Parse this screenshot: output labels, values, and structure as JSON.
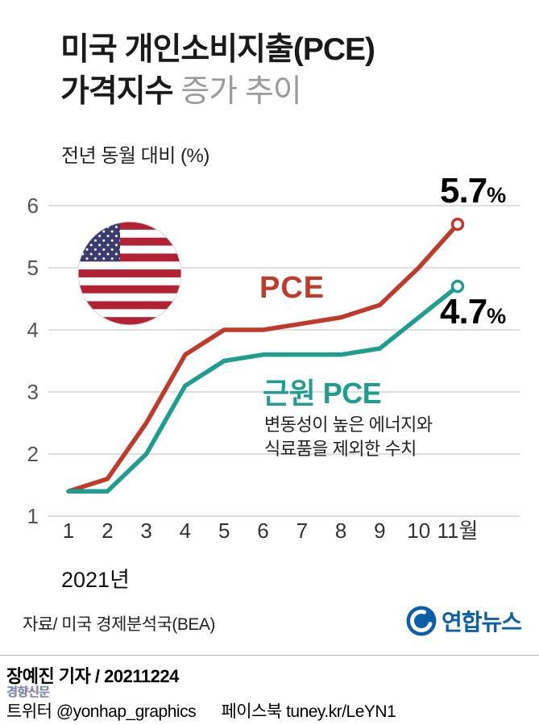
{
  "header": {
    "title_line1": "미국 개인소비지출(PCE)",
    "title_line2_strong": "가격지수",
    "title_line2_light": " 증가 추이",
    "subtitle": "전년 동월 대비 (%)"
  },
  "chart_data": {
    "type": "line",
    "x": [
      1,
      2,
      3,
      4,
      5,
      6,
      7,
      8,
      9,
      10,
      11
    ],
    "x_tick_labels": [
      "1",
      "2",
      "3",
      "4",
      "5",
      "6",
      "7",
      "8",
      "9",
      "10",
      "11월"
    ],
    "y_ticks": [
      1,
      2,
      3,
      4,
      5,
      6
    ],
    "ylim": [
      1,
      6
    ],
    "grid": true,
    "year_label": "2021년",
    "series": [
      {
        "name": "PCE",
        "color": "#c03a2b",
        "values": [
          1.4,
          1.6,
          2.5,
          3.6,
          4.0,
          4.0,
          4.1,
          4.2,
          4.4,
          5.0,
          5.7
        ],
        "end_label_value": "5.7",
        "end_label_unit": "%"
      },
      {
        "name": "근원 PCE",
        "color": "#1d9e8f",
        "values": [
          1.4,
          1.4,
          2.0,
          3.1,
          3.5,
          3.6,
          3.6,
          3.6,
          3.7,
          4.2,
          4.7
        ],
        "end_label_value": "4.7",
        "end_label_unit": "%"
      }
    ],
    "annotation": {
      "line1": "변동성이 높은 에너지와",
      "line2": "식료품을 제외한 수치"
    }
  },
  "icons": {
    "flag": "us-flag-icon",
    "agency_logo": "yonhap-logo-icon"
  },
  "footer": {
    "source": "자료/ 미국 경제분석국(BEA)",
    "agency_name": "연합뉴스",
    "byline": "장예진 기자 / 20211224",
    "watermark": "경향신문",
    "social": {
      "twitter_label": "트위터",
      "twitter_handle": "@yonhap_graphics",
      "facebook_label": "페이스북",
      "facebook_handle": "tuney.kr/LeYN1"
    }
  }
}
